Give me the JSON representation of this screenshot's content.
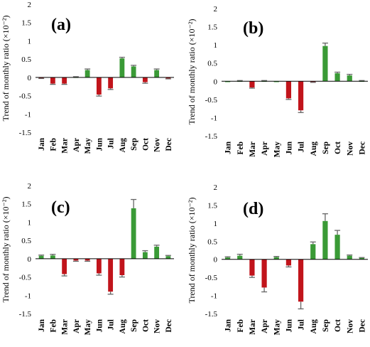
{
  "colors": {
    "positive": "#3a9a36",
    "negative": "#c1141b",
    "error_bar": "#666666"
  },
  "chart_data": [
    {
      "type": "bar",
      "panel_label": "(a)",
      "ylabel": "Trend of monthly ratio (×10⁻²)",
      "ylim": [
        -1.5,
        2
      ],
      "yticks": [
        "-1.5",
        "-1",
        "-0.5",
        "0",
        "0.5",
        "1",
        "1.5",
        "2"
      ],
      "categories": [
        "Jan",
        "Feb",
        "Mar",
        "Apr",
        "May",
        "Jun",
        "Jul",
        "Aug",
        "Sep",
        "Oct",
        "Nov",
        "Dec"
      ],
      "values": [
        -0.02,
        -0.17,
        -0.17,
        0.01,
        0.2,
        -0.47,
        -0.3,
        0.52,
        0.3,
        -0.13,
        0.2,
        -0.03
      ],
      "errors": [
        0.01,
        0.02,
        0.02,
        0.01,
        0.03,
        0.04,
        0.03,
        0.03,
        0.03,
        0.03,
        0.03,
        0.01
      ]
    },
    {
      "type": "bar",
      "panel_label": "(b)",
      "ylabel": "Trend of monthly ratio (×10⁻²)",
      "ylim": [
        -1.5,
        2
      ],
      "yticks": [
        "-1.5",
        "-1",
        "-0.5",
        "0",
        "0.5",
        "1",
        "1.5",
        "2"
      ],
      "categories": [
        "Jan",
        "Feb",
        "Mar",
        "Apr",
        "May",
        "Jun",
        "Jul",
        "Aug",
        "Sep",
        "Oct",
        "Nov",
        "Dec"
      ],
      "values": [
        0.0,
        0.01,
        -0.17,
        0.01,
        0.0,
        -0.47,
        -0.8,
        -0.02,
        0.97,
        0.22,
        0.16,
        0.01
      ],
      "errors": [
        0.0,
        0.01,
        0.02,
        0.01,
        0.0,
        0.03,
        0.06,
        0.01,
        0.08,
        0.03,
        0.03,
        0.01
      ]
    },
    {
      "type": "bar",
      "panel_label": "(c)",
      "ylabel": "Trend of monthly ratio (×10⁻²)",
      "ylim": [
        -1.5,
        2
      ],
      "yticks": [
        "-1.5",
        "-1",
        "-0.5",
        "0",
        "0.5",
        "1",
        "1.5",
        "2"
      ],
      "categories": [
        "Jan",
        "Feb",
        "Mar",
        "Apr",
        "May",
        "Jun",
        "Jul",
        "Aug",
        "Sep",
        "Oct",
        "Nov",
        "Dec"
      ],
      "values": [
        0.08,
        0.09,
        -0.42,
        -0.05,
        -0.05,
        -0.4,
        -0.9,
        -0.45,
        1.38,
        0.18,
        0.33,
        0.07
      ],
      "errors": [
        0.02,
        0.03,
        0.05,
        0.02,
        0.02,
        0.05,
        0.07,
        0.05,
        0.24,
        0.04,
        0.04,
        0.02
      ]
    },
    {
      "type": "bar",
      "panel_label": "(d)",
      "ylabel": "Trend of monthly ratio (×10⁻²)",
      "ylim": [
        -1.5,
        2
      ],
      "yticks": [
        "-1.5",
        "-1",
        "-0.5",
        "0",
        "0.5",
        "1",
        "1.5",
        "2"
      ],
      "categories": [
        "Jan",
        "Feb",
        "Mar",
        "Apr",
        "May",
        "Jun",
        "Jul",
        "Aug",
        "Sep",
        "Oct",
        "Nov",
        "Dec"
      ],
      "values": [
        0.05,
        0.1,
        -0.45,
        -0.78,
        0.06,
        -0.17,
        -1.17,
        0.42,
        1.06,
        0.68,
        0.1,
        0.04
      ],
      "errors": [
        0.02,
        0.04,
        0.05,
        0.12,
        0.02,
        0.04,
        0.2,
        0.06,
        0.2,
        0.12,
        0.02,
        0.01
      ]
    }
  ]
}
